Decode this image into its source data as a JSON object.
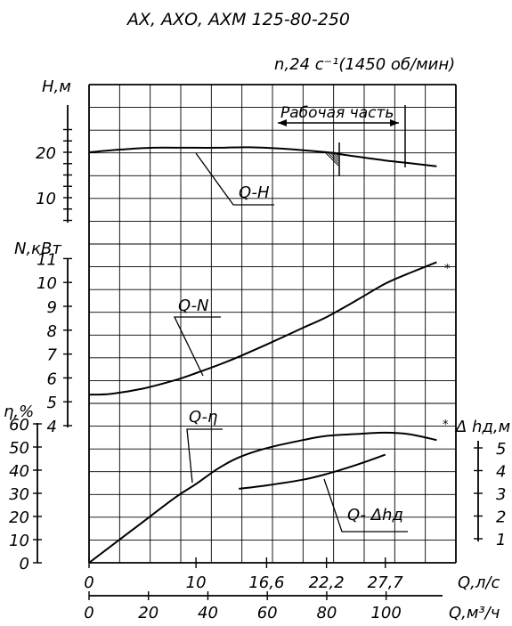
{
  "title": "АХ, АХО, АХМ 125-80-250",
  "speed_label": "n,24 с⁻¹(1450 об/мин)",
  "working_zone_label": "Рабочая часть",
  "chart_data": [
    {
      "type": "line",
      "ylabel": "H,м",
      "yticks": [
        "10",
        "20"
      ],
      "series": [
        {
          "name": "Q-H",
          "x": [
            0,
            3,
            6,
            9,
            12,
            15,
            18,
            22.2,
            24,
            27.7,
            30,
            32.5
          ],
          "y": [
            20,
            20.6,
            21,
            21,
            21,
            21.1,
            20.8,
            20,
            19.4,
            18.2,
            17.6,
            16.9
          ]
        }
      ],
      "ylim": [
        5,
        25
      ]
    },
    {
      "type": "line",
      "ylabel": "N,кВт",
      "yticks": [
        "4",
        "5",
        "6",
        "7",
        "8",
        "9",
        "10",
        "11"
      ],
      "series": [
        {
          "name": "Q-N",
          "x": [
            0,
            2,
            5,
            8,
            10,
            13,
            16.6,
            20,
            22.2,
            25,
            27.7,
            30,
            32.5
          ],
          "y": [
            5.3,
            5.33,
            5.55,
            5.9,
            6.2,
            6.7,
            7.4,
            8.1,
            8.55,
            9.25,
            9.95,
            10.4,
            10.85
          ]
        }
      ],
      "ylim": [
        4,
        11.5
      ]
    },
    {
      "type": "line",
      "ylabel": "η,%",
      "yticks": [
        "0",
        "10",
        "20",
        "30",
        "40",
        "50",
        "60"
      ],
      "series": [
        {
          "name": "Q-η",
          "x": [
            0,
            4,
            8,
            10,
            12,
            14,
            16.6,
            20,
            22.2,
            25,
            27.7,
            30,
            32.5
          ],
          "y": [
            0,
            14,
            28,
            34,
            40.5,
            45.5,
            49.5,
            53,
            54.8,
            55.6,
            56.2,
            55.5,
            53
          ]
        }
      ],
      "ylim": [
        0,
        60
      ]
    },
    {
      "type": "line",
      "ylabel": "Δ hд,м",
      "yticks": [
        "1",
        "2",
        "3",
        "4",
        "5"
      ],
      "series": [
        {
          "name": "Q- Δhд",
          "x": [
            14,
            16.6,
            20,
            22.2,
            25,
            27.7
          ],
          "y": [
            3.2,
            3.35,
            3.6,
            3.85,
            4.25,
            4.7
          ]
        }
      ],
      "ylim": [
        1,
        5
      ]
    }
  ],
  "x_axis_ls": {
    "label": "Q,л/с",
    "ticks": [
      "0",
      "10",
      "16,6",
      "22,2",
      "27,7"
    ],
    "values": [
      0,
      10,
      16.6,
      22.2,
      27.7
    ]
  },
  "x_axis_m3h": {
    "label": "Q,м³/ч",
    "ticks": [
      "0",
      "20",
      "40",
      "60",
      "80",
      "100"
    ],
    "values": [
      0,
      20,
      40,
      60,
      80,
      100
    ]
  }
}
